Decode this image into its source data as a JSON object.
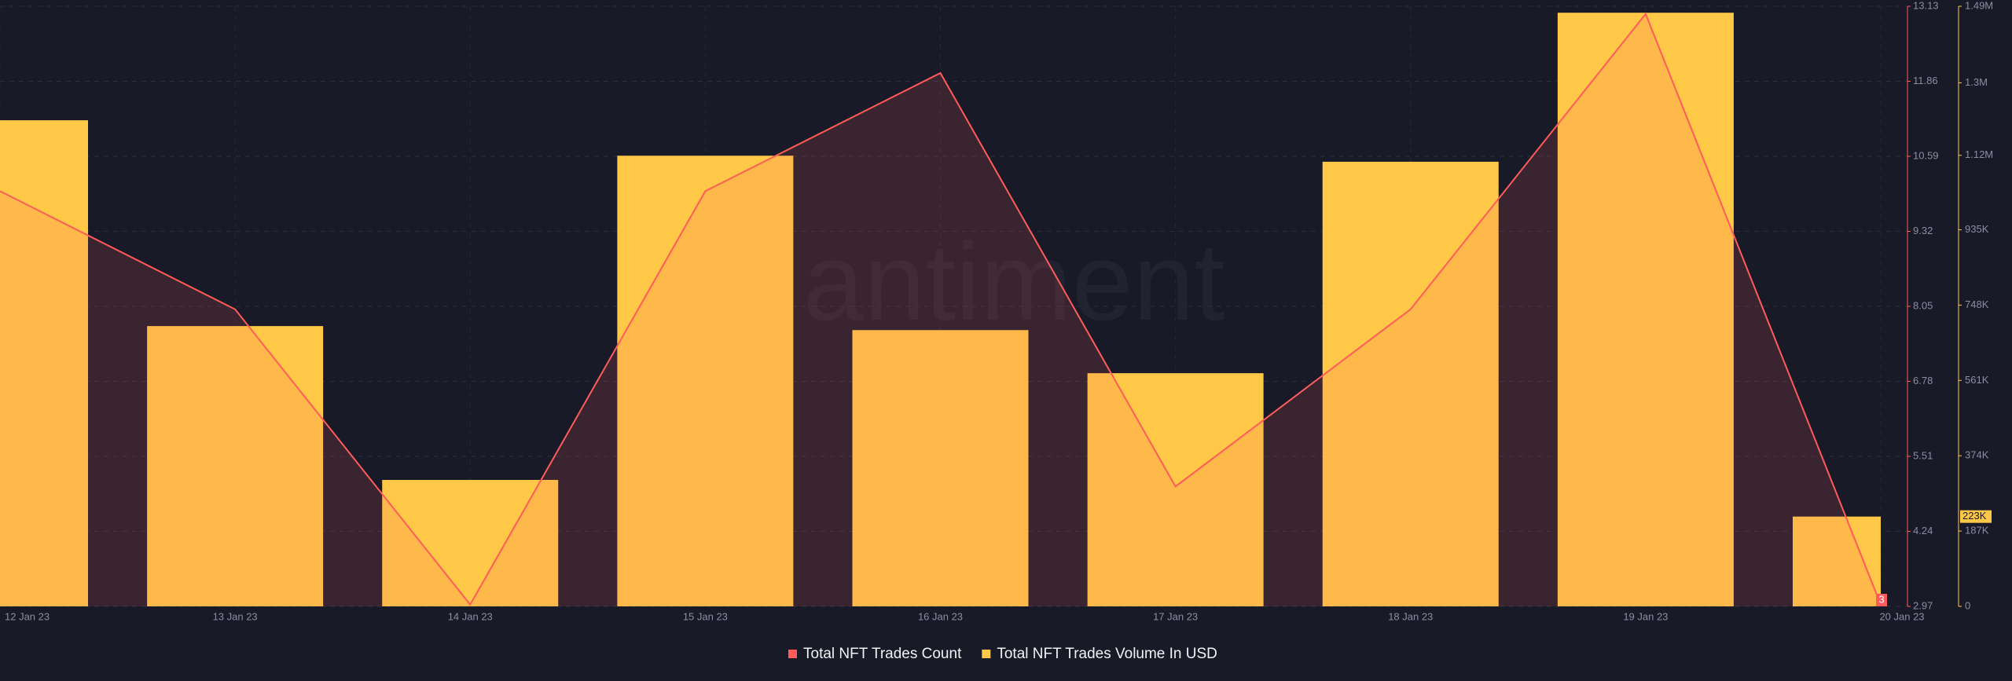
{
  "chart_data": {
    "type": "combo",
    "watermark": "antiment",
    "categories": [
      "12 Jan 23",
      "13 Jan 23",
      "14 Jan 23",
      "15 Jan 23",
      "16 Jan 23",
      "17 Jan 23",
      "18 Jan 23",
      "19 Jan 23",
      "20 Jan 23"
    ],
    "series": [
      {
        "name": "Total NFT Trades Count",
        "type": "line",
        "color": "#ff5b5b",
        "values": [
          10,
          8,
          3,
          10,
          12,
          5,
          8,
          13,
          3
        ]
      },
      {
        "name": "Total NFT Trades Volume In USD",
        "type": "bar",
        "color": "#ffc847",
        "axis": "y2",
        "values": [
          1207000,
          696000,
          314000,
          1119000,
          686000,
          579000,
          1104000,
          1474000,
          223000
        ],
        "value_labels": [
          null,
          null,
          null,
          null,
          null,
          null,
          null,
          null,
          "223K"
        ]
      }
    ],
    "ylim": [
      2.97,
      13.13
    ],
    "yticks": [
      2.97,
      4.24,
      5.51,
      6.78,
      8.05,
      9.32,
      10.59,
      11.86,
      13.13
    ],
    "y2lim": [
      0,
      1490000
    ],
    "y2ticks": [
      0,
      {
        "value": 187000,
        "label": "187K"
      },
      {
        "value": 374000,
        "label": "374K"
      },
      {
        "value": 561000,
        "label": "561K"
      },
      {
        "value": 748000,
        "label": "748K"
      },
      {
        "value": 935000,
        "label": "935K"
      },
      {
        "value": 1120000,
        "label": "1.12M"
      },
      {
        "value": 1300000,
        "label": "1.3M"
      },
      {
        "value": 1490000,
        "label": "1.49M"
      }
    ],
    "grid": true,
    "legend": "bottom"
  }
}
